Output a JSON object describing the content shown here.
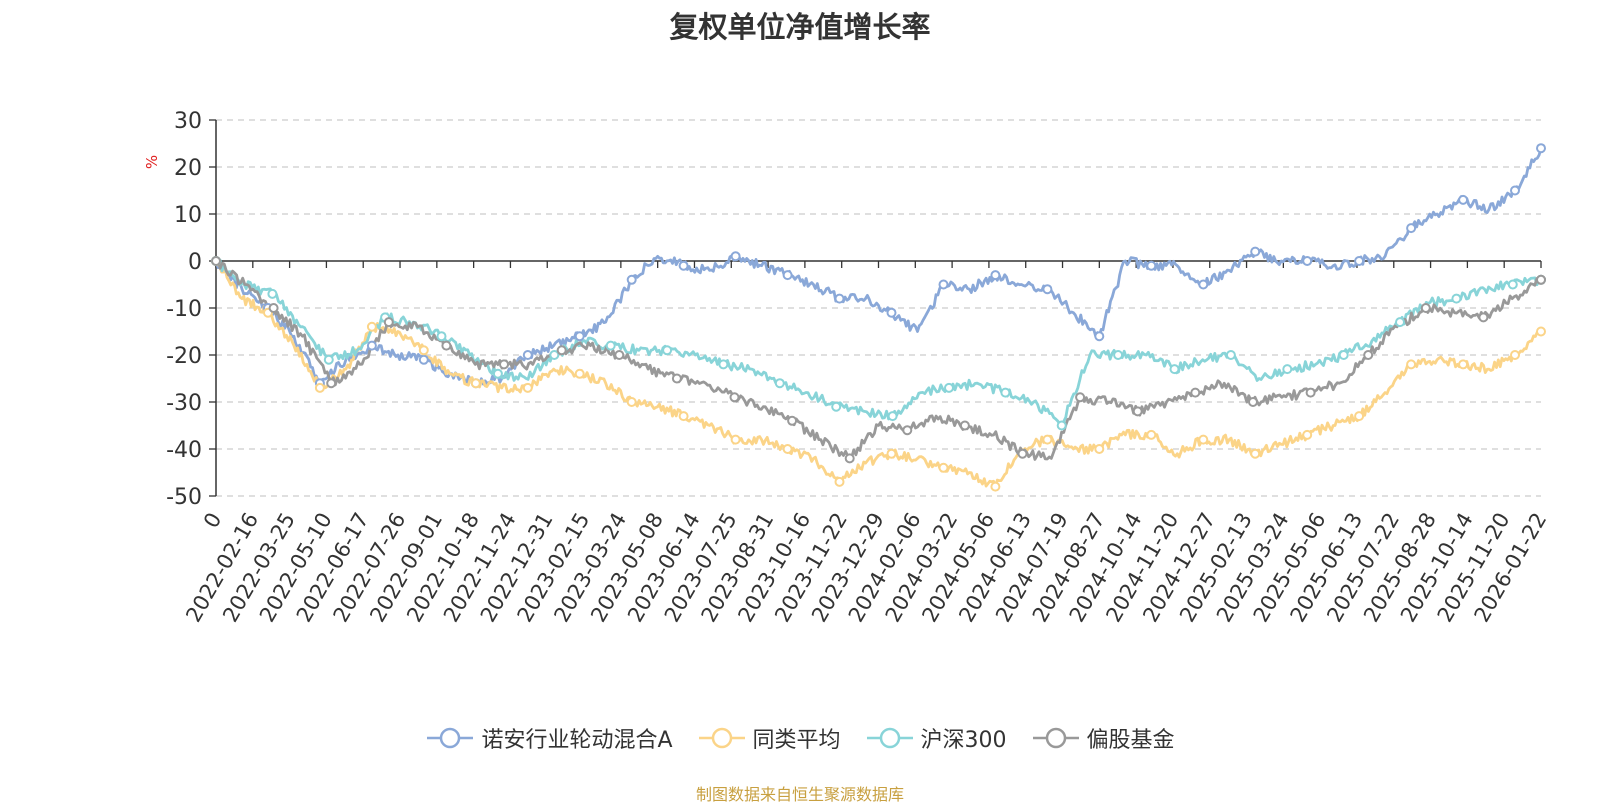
{
  "title": "复权单位净值增长率",
  "source": "制图数据来自恒生聚源数据库",
  "colors": {
    "source_text": "#c8a040",
    "unit_label": "#e02020",
    "grid": "#cccccc",
    "axis": "#333333"
  },
  "chart_data": {
    "type": "line",
    "title": "复权单位净值增长率",
    "ylabel": "%",
    "ylim": [
      -50,
      30
    ],
    "yticks": [
      30,
      20,
      10,
      0,
      -10,
      -20,
      -30,
      -40,
      -50
    ],
    "grid": true,
    "legend_position": "bottom",
    "xticks": [
      "0",
      "2022-02-16",
      "2022-03-25",
      "2022-05-10",
      "2022-06-17",
      "2022-07-26",
      "2022-09-01",
      "2022-10-18",
      "2022-11-24",
      "2022-12-31",
      "2023-02-15",
      "2023-03-24",
      "2023-05-08",
      "2023-06-14",
      "2023-07-25",
      "2023-08-31",
      "2023-10-16",
      "2023-11-22",
      "2023-12-29",
      "2024-02-06",
      "2024-03-22",
      "2024-05-06",
      "2024-06-13",
      "2024-07-19",
      "2024-08-27",
      "2024-10-14",
      "2024-11-20",
      "2024-12-27",
      "2025-02-13",
      "2025-03-24",
      "2025-05-06",
      "2025-06-13",
      "2025-07-22",
      "2025-08-28",
      "2025-10-14",
      "2025-11-20",
      "2026-01-22"
    ],
    "series": [
      {
        "name": "诺安行业轮动混合A",
        "color": "#8aa8d8",
        "values": [
          0,
          -6,
          -10,
          -16,
          -26,
          -21,
          -18,
          -20,
          -21,
          -24,
          -26,
          -25,
          -20,
          -18,
          -16,
          -13,
          -4,
          1,
          -1,
          -2,
          1,
          -1,
          -3,
          -5,
          -8,
          -8,
          -11,
          -15,
          -5,
          -6,
          -3,
          -5,
          -6,
          -11,
          -16,
          0,
          -1,
          -1,
          -5,
          -2,
          2,
          0,
          0,
          -1,
          0,
          1,
          7,
          10,
          13,
          11,
          15,
          24
        ]
      },
      {
        "name": "同类平均",
        "color": "#fbd488",
        "values": [
          0,
          -8,
          -11,
          -18,
          -27,
          -23,
          -14,
          -15,
          -19,
          -24,
          -26,
          -27,
          -27,
          -23,
          -24,
          -26,
          -30,
          -31,
          -33,
          -35,
          -38,
          -38,
          -40,
          -42,
          -47,
          -43,
          -41,
          -42,
          -44,
          -45,
          -48,
          -40,
          -38,
          -40,
          -40,
          -37,
          -37,
          -41,
          -38,
          -38,
          -41,
          -39,
          -37,
          -35,
          -33,
          -28,
          -22,
          -21,
          -22,
          -23,
          -20,
          -15
        ]
      },
      {
        "name": "沪深300",
        "color": "#88d4d8",
        "values": [
          0,
          -5,
          -7,
          -14,
          -21,
          -19,
          -12,
          -13,
          -16,
          -20,
          -24,
          -25,
          -20,
          -17,
          -18,
          -19,
          -19,
          -20,
          -22,
          -23,
          -26,
          -28,
          -31,
          -32,
          -33,
          -28,
          -27,
          -26,
          -28,
          -30,
          -35,
          -20,
          -20,
          -20,
          -23,
          -21,
          -20,
          -25,
          -23,
          -22,
          -20,
          -17,
          -13,
          -9,
          -8,
          -6,
          -5,
          -4
        ]
      },
      {
        "name": "偏股基金",
        "color": "#999999",
        "values": [
          0,
          -5,
          -10,
          -16,
          -26,
          -22,
          -13,
          -14,
          -18,
          -22,
          -22,
          -22,
          -19,
          -18,
          -20,
          -23,
          -25,
          -26,
          -29,
          -31,
          -34,
          -38,
          -42,
          -35,
          -36,
          -33,
          -35,
          -37,
          -41,
          -42,
          -29,
          -30,
          -32,
          -30,
          -28,
          -26,
          -30,
          -29,
          -28,
          -26,
          -20,
          -14,
          -10,
          -11,
          -12,
          -8,
          -4
        ]
      }
    ]
  }
}
